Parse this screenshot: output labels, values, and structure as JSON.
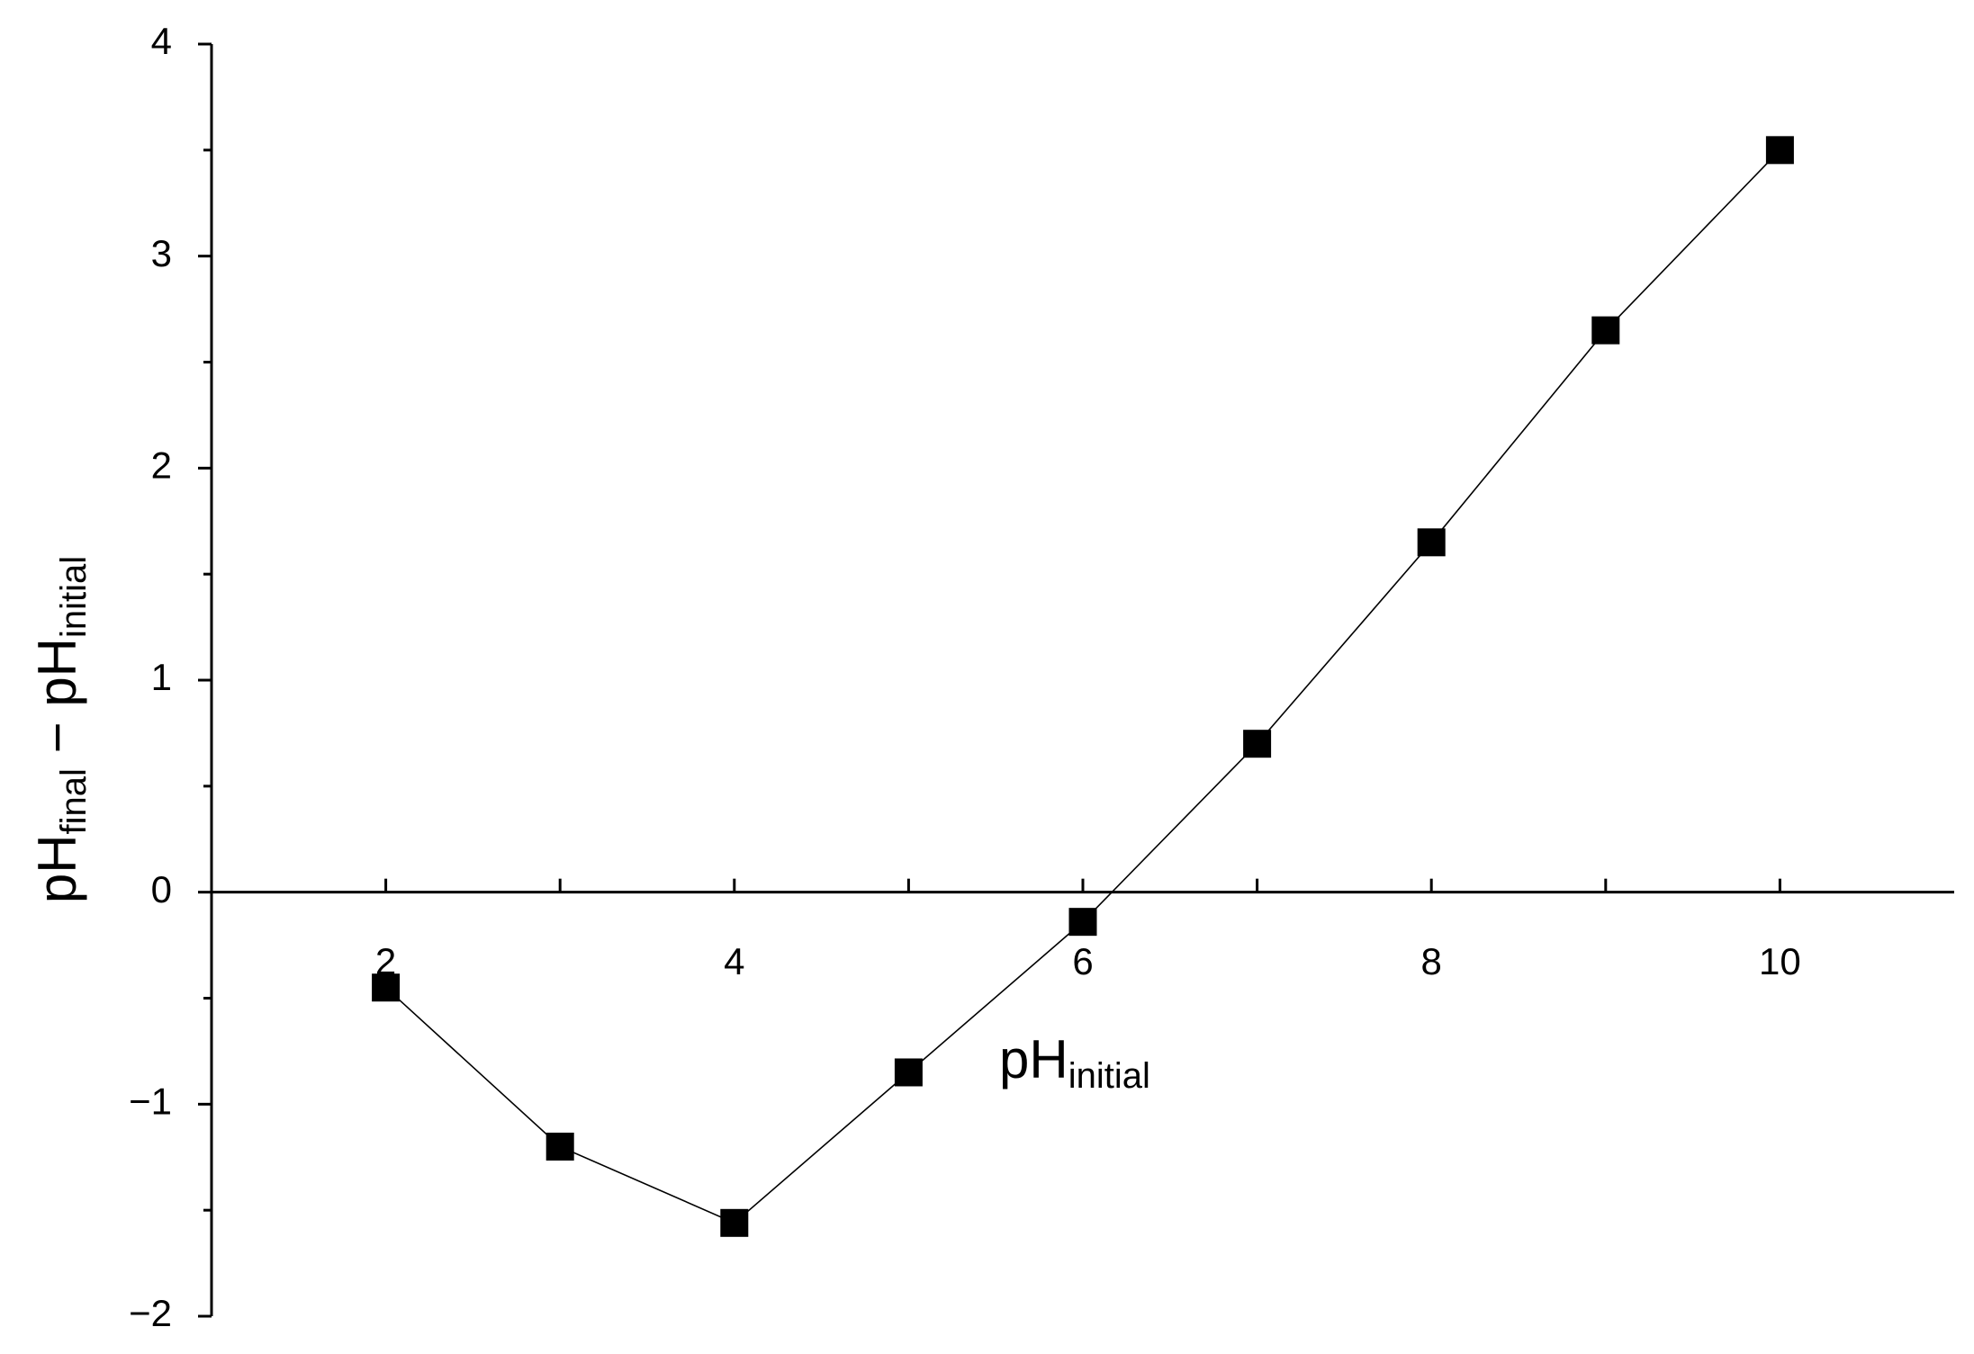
{
  "chart_data": {
    "type": "line",
    "x": [
      2,
      3,
      4,
      5,
      6,
      7,
      8,
      9,
      10
    ],
    "series": [
      {
        "color": "#000000",
        "values": [
          -0.45,
          -1.2,
          -1.56,
          -0.85,
          -0.14,
          0.7,
          1.65,
          2.65,
          3.5
        ]
      }
    ],
    "xlim": [
      1,
      11
    ],
    "xticks": [
      2,
      4,
      6,
      8,
      10
    ],
    "xminorticks": [
      3,
      5,
      7,
      9
    ],
    "ylim": [
      -2,
      4
    ],
    "yticks": [
      {
        "value": -2,
        "label": "−2"
      },
      {
        "value": -1,
        "label": "−1"
      },
      0,
      1,
      2,
      3,
      4
    ],
    "yminorticks": [
      -1.5,
      -0.5,
      0.5,
      1.5,
      2.5,
      3.5
    ],
    "xlabel": {
      "main": "pH",
      "sub": "initial"
    },
    "ylabel": {
      "main": "pH",
      "sub": "final",
      "middle": " − pH",
      "sub2": "initial"
    }
  }
}
